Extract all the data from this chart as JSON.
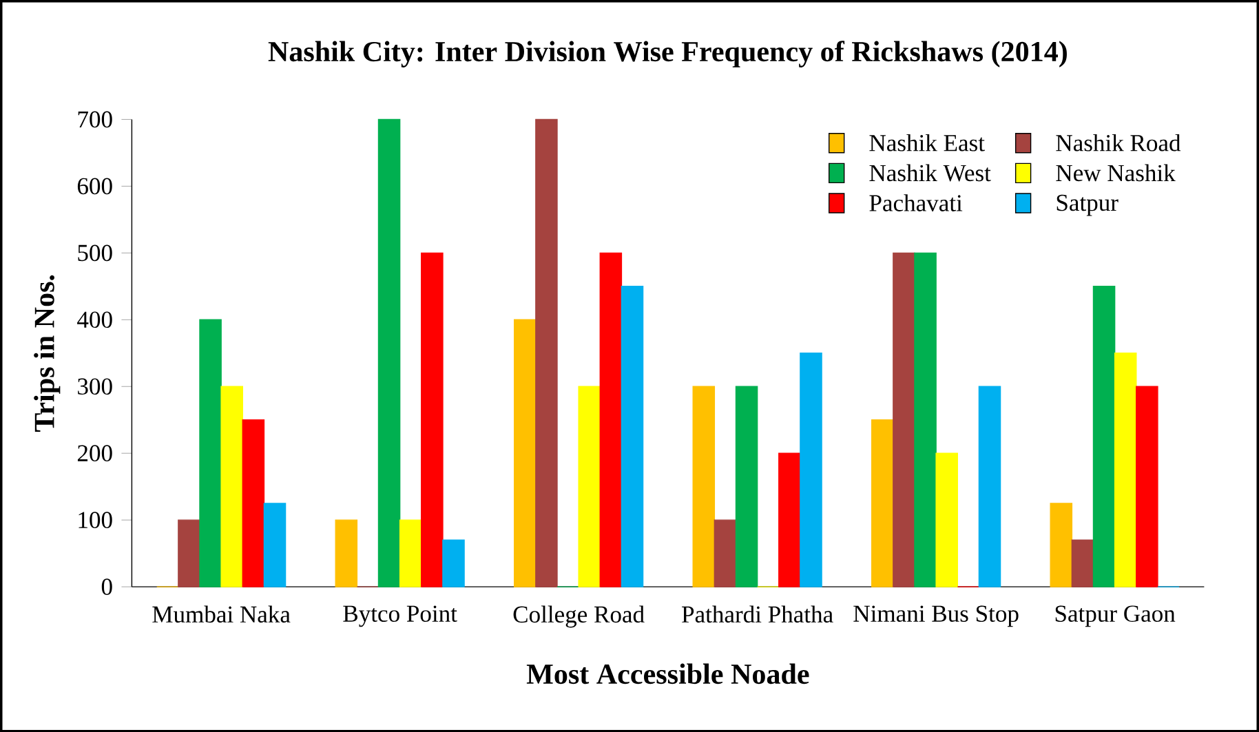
{
  "chart_data": {
    "type": "bar",
    "title": "Nashik City: Inter Division Wise Frequency of Rickshaws (2014)",
    "xlabel": "Most Accessible Noade",
    "ylabel": "Trips in Nos.",
    "categories": [
      "Mumbai Naka",
      "Bytco Point",
      "College Road",
      "Pathardi Phatha",
      "Nimani Bus Stop",
      "Satpur Gaon"
    ],
    "series": [
      {
        "name": "Nashik East",
        "color": "#ffc000",
        "values": [
          0,
          100,
          400,
          300,
          250,
          125
        ]
      },
      {
        "name": "Nashik Road",
        "color": "#a5433f",
        "values": [
          100,
          0,
          700,
          100,
          500,
          70
        ]
      },
      {
        "name": "Nashik West",
        "color": "#00b050",
        "values": [
          400,
          700,
          0,
          300,
          500,
          450
        ]
      },
      {
        "name": "New Nashik",
        "color": "#ffff00",
        "values": [
          300,
          100,
          300,
          0,
          200,
          350
        ]
      },
      {
        "name": "Pachavati",
        "color": "#ff0000",
        "values": [
          250,
          500,
          500,
          200,
          0,
          300
        ]
      },
      {
        "name": "Satpur",
        "color": "#00b0f0",
        "values": [
          125,
          70,
          450,
          350,
          300,
          0
        ]
      }
    ],
    "ylim": [
      0,
      700
    ],
    "yticks": [
      0,
      100,
      200,
      300,
      400,
      500,
      600,
      700
    ],
    "grid": false,
    "legend": "top right"
  }
}
